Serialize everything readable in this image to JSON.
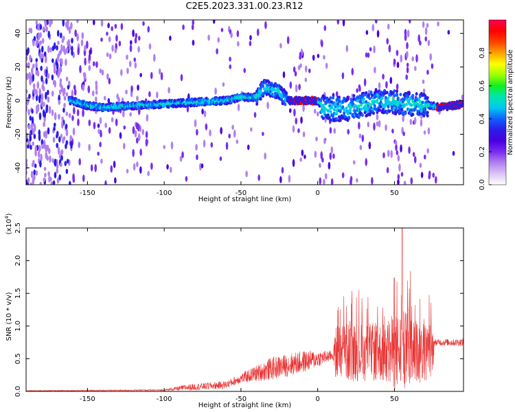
{
  "title": "C2E5.2023.331.00.23.R12",
  "chart_data": [
    {
      "type": "heatmap",
      "title": "",
      "xlabel": "Height of straight line (km)",
      "ylabel": "Frequency (Hz)",
      "xlim": [
        -190,
        95
      ],
      "ylim": [
        -50,
        48
      ],
      "xticks": [
        -150,
        -100,
        -50,
        0,
        50
      ],
      "yticks": [
        -40,
        -20,
        0,
        20,
        40
      ],
      "colorbar": {
        "label": "Normalized spectral amplitude",
        "range": [
          0.0,
          1.0
        ],
        "ticks": [
          "0.0",
          "0.2",
          "0.4",
          "0.6",
          "0.8"
        ],
        "colors": [
          "#ffffff",
          "#dcc4f5",
          "#b180f0",
          "#7a2cf0",
          "#4a00e0",
          "#2a1de8",
          "#1060ff",
          "#00c8f0",
          "#00e6b0",
          "#10f020",
          "#a0ff00",
          "#ffff00",
          "#ffa000",
          "#ff4000",
          "#ff0000",
          "#ff0050"
        ]
      },
      "ridge": [
        {
          "x": -160,
          "f": 0
        },
        {
          "x": -150,
          "f": -3
        },
        {
          "x": -140,
          "f": -4
        },
        {
          "x": -120,
          "f": -3
        },
        {
          "x": -100,
          "f": -2
        },
        {
          "x": -80,
          "f": -1
        },
        {
          "x": -60,
          "f": 0
        },
        {
          "x": -50,
          "f": 2
        },
        {
          "x": -40,
          "f": 2
        },
        {
          "x": -35,
          "f": 8
        },
        {
          "x": -25,
          "f": 5
        },
        {
          "x": -20,
          "f": 0
        },
        {
          "x": 0,
          "f": 0
        },
        {
          "x": 5,
          "f": -5
        },
        {
          "x": 20,
          "f": -5
        },
        {
          "x": 40,
          "f": 0
        },
        {
          "x": 60,
          "f": -2
        },
        {
          "x": 73,
          "f": -3
        },
        {
          "x": 80,
          "f": -4
        },
        {
          "x": 95,
          "f": -2
        }
      ]
    },
    {
      "type": "line",
      "title": "",
      "xlabel": "Height of straight line (km)",
      "ylabel": "SNR (10 * v/v)",
      "scale_label": "(x10",
      "scale_exp": "4",
      "scale_close": ")",
      "xlim": [
        -190,
        95
      ],
      "ylim": [
        0,
        2.5
      ],
      "xticks": [
        -150,
        -100,
        -50,
        0,
        50
      ],
      "yticks": [
        "0.0",
        "0.5",
        "1.0",
        "1.5",
        "2.0",
        "2.5"
      ],
      "color": "#e83030",
      "envelope": [
        {
          "x": -190,
          "base": 0.01,
          "amp": 0.01
        },
        {
          "x": -100,
          "base": 0.02,
          "amp": 0.02
        },
        {
          "x": -85,
          "base": 0.06,
          "amp": 0.1
        },
        {
          "x": -60,
          "base": 0.1,
          "amp": 0.12
        },
        {
          "x": -50,
          "base": 0.2,
          "amp": 0.15
        },
        {
          "x": -30,
          "base": 0.35,
          "amp": 0.35
        },
        {
          "x": -10,
          "base": 0.45,
          "amp": 0.35
        },
        {
          "x": 10,
          "base": 0.55,
          "amp": 0.15
        },
        {
          "x": 12,
          "base": 0.6,
          "amp": 0.9
        },
        {
          "x": 40,
          "base": 0.6,
          "amp": 0.9
        },
        {
          "x": 55,
          "base": 0.6,
          "amp": 1.3
        },
        {
          "x": 75,
          "base": 0.6,
          "amp": 0.8
        },
        {
          "x": 76,
          "base": 0.75,
          "amp": 0.1
        },
        {
          "x": 95,
          "base": 0.75,
          "amp": 0.12
        }
      ]
    }
  ]
}
